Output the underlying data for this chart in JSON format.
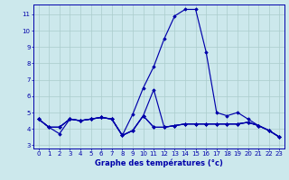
{
  "title": "Graphe des températures (°c)",
  "bg_color": "#cce8ec",
  "grid_color": "#aacccc",
  "line_color": "#0000aa",
  "xlim": [
    -0.5,
    23.5
  ],
  "ylim": [
    2.8,
    11.6
  ],
  "yticks": [
    3,
    4,
    5,
    6,
    7,
    8,
    9,
    10,
    11
  ],
  "xticks": [
    0,
    1,
    2,
    3,
    4,
    5,
    6,
    7,
    8,
    9,
    10,
    11,
    12,
    13,
    14,
    15,
    16,
    17,
    18,
    19,
    20,
    21,
    22,
    23
  ],
  "series": [
    [
      4.6,
      4.1,
      3.7,
      4.6,
      4.5,
      4.6,
      4.7,
      4.6,
      3.6,
      3.9,
      4.8,
      4.1,
      4.1,
      4.2,
      4.3,
      4.3,
      4.3,
      4.3,
      4.3,
      4.3,
      4.4,
      4.2,
      3.9,
      3.5
    ],
    [
      4.6,
      4.1,
      4.1,
      4.6,
      4.5,
      4.6,
      4.7,
      4.6,
      3.6,
      4.9,
      6.5,
      7.8,
      9.5,
      10.9,
      11.3,
      11.3,
      8.7,
      5.0,
      4.8,
      5.0,
      4.6,
      4.2,
      3.9,
      3.5
    ],
    [
      4.6,
      4.1,
      4.1,
      4.6,
      4.5,
      4.6,
      4.7,
      4.6,
      3.6,
      3.9,
      4.8,
      6.4,
      4.1,
      4.2,
      4.3,
      4.3,
      4.3,
      4.3,
      4.3,
      4.3,
      4.4,
      4.2,
      3.9,
      3.5
    ],
    [
      4.6,
      4.1,
      4.1,
      4.6,
      4.5,
      4.6,
      4.7,
      4.6,
      3.6,
      3.9,
      4.8,
      4.1,
      4.1,
      4.2,
      4.3,
      4.3,
      4.3,
      4.3,
      4.3,
      4.3,
      4.4,
      4.2,
      3.9,
      3.5
    ]
  ],
  "tick_labelsize": 5.0,
  "xlabel_fontsize": 6.0
}
